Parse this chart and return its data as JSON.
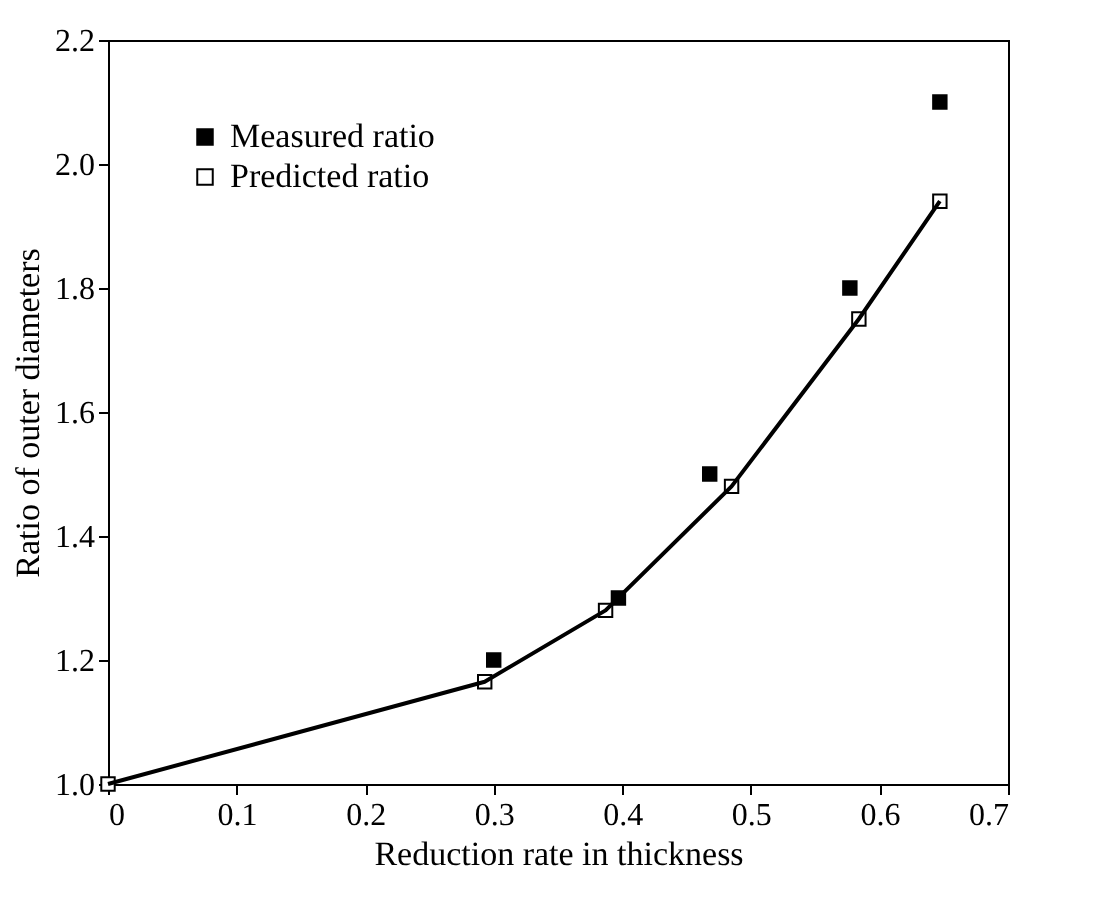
{
  "chart_data": {
    "type": "scatter",
    "xlabel": "Reduction rate in thickness",
    "ylabel": "Ratio of outer diameters",
    "xlim": [
      0,
      0.7
    ],
    "xticks": [
      0,
      0.1,
      0.2,
      0.3,
      0.4,
      0.5,
      0.6,
      0.7
    ],
    "ylim": [
      1.0,
      2.2
    ],
    "yticks": [
      {
        "value": 1.0,
        "label": "1.0"
      },
      1.2,
      1.4,
      1.6,
      1.8,
      {
        "value": 2.0,
        "label": "2.0"
      },
      2.2
    ],
    "legend": "top left",
    "grid": false,
    "marker": "square",
    "line_style": "solid",
    "series": [
      {
        "name": "Measured ratio",
        "color": "#000000",
        "x": [
          0.3,
          0.397,
          0.468,
          0.577,
          0.647
        ],
        "values": [
          1.2,
          1.3,
          1.5,
          1.8,
          2.1
        ]
      },
      {
        "name": "Predicted ratio",
        "type": "line",
        "color": "#000000",
        "x": [
          0,
          0.293,
          0.387,
          0.485,
          0.584,
          0.647
        ],
        "values": [
          1.0,
          1.165,
          1.28,
          1.48,
          1.75,
          1.94
        ]
      }
    ]
  }
}
